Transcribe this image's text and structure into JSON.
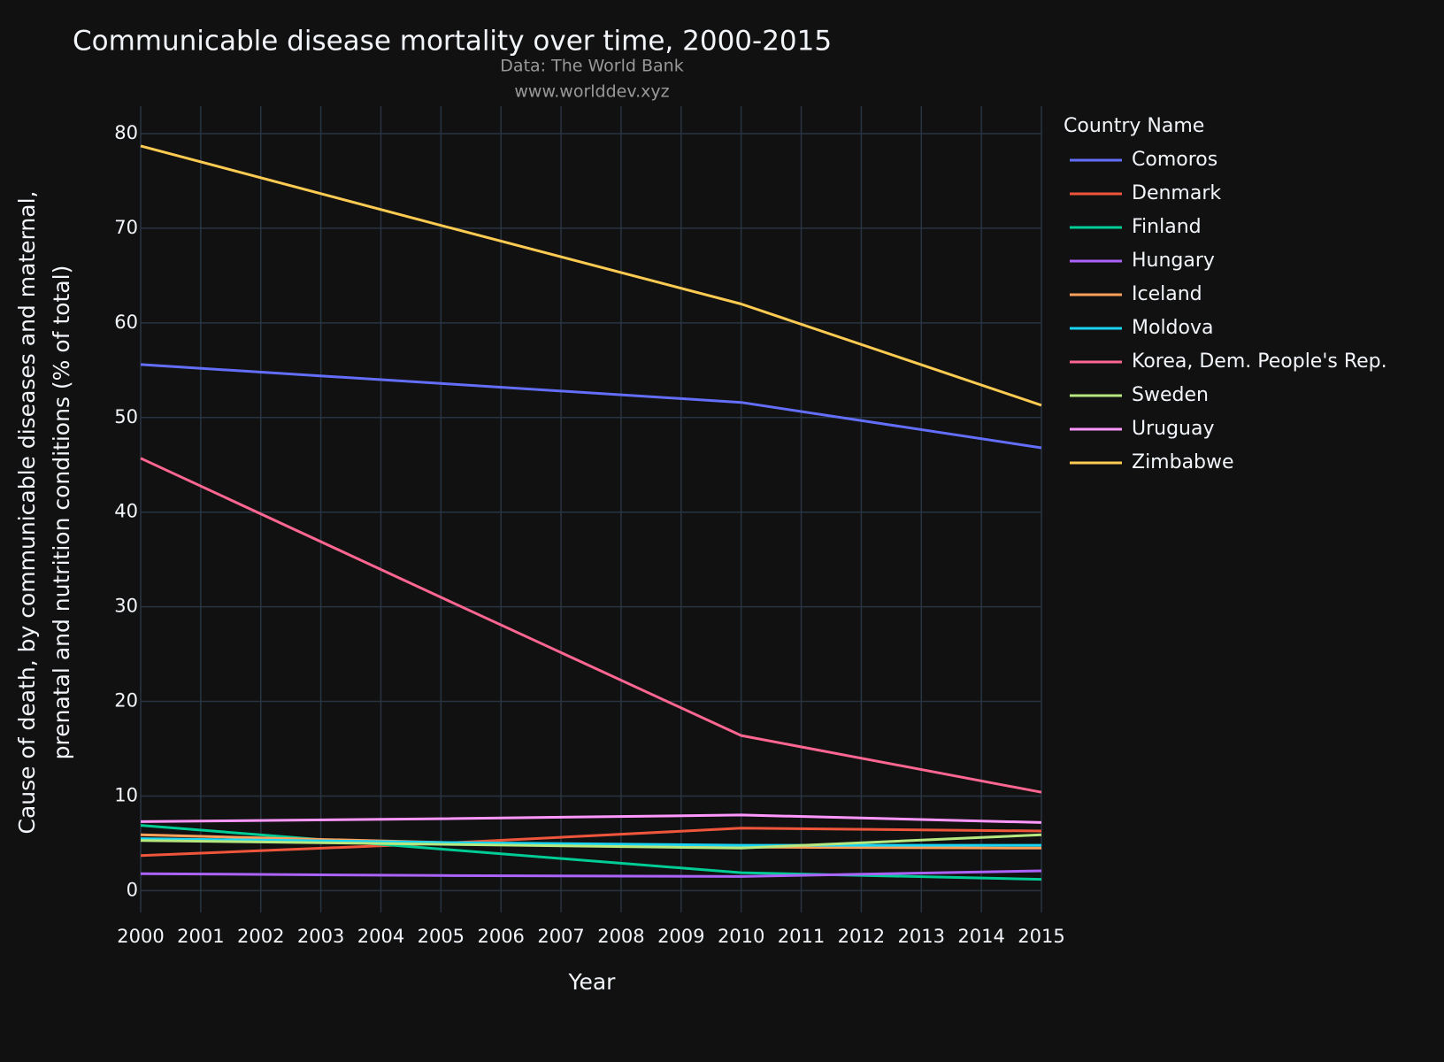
{
  "chart_data": {
    "type": "line",
    "title": "Communicable disease mortality over time, 2000-2015",
    "subtitle": [
      "Data: The World Bank",
      "www.worlddev.xyz"
    ],
    "x_label": "Year",
    "y_label": [
      "Cause of death, by communicable diseases and maternal,",
      "prenatal and nutrition conditions (% of total)"
    ],
    "legend_title": "Country Name",
    "legend_position": "right",
    "grid": true,
    "x": [
      2000,
      2005,
      2010,
      2015
    ],
    "xlim": [
      2000,
      2015
    ],
    "xticks": [
      2000,
      2001,
      2002,
      2003,
      2004,
      2005,
      2006,
      2007,
      2008,
      2009,
      2010,
      2011,
      2012,
      2013,
      2014,
      2015
    ],
    "ylim": [
      -2.3,
      82.9
    ],
    "yticks": [
      0,
      10,
      20,
      30,
      40,
      50,
      60,
      70,
      80
    ],
    "series": [
      {
        "name": "Comoros",
        "color": "#636efa",
        "values": [
          55.6,
          53.6,
          51.6,
          46.8
        ]
      },
      {
        "name": "Denmark",
        "color": "#EF553B",
        "values": [
          3.7,
          5.0,
          6.6,
          6.3
        ]
      },
      {
        "name": "Finland",
        "color": "#00cc96",
        "values": [
          6.9,
          4.4,
          1.9,
          1.2
        ]
      },
      {
        "name": "Hungary",
        "color": "#ab63fa",
        "values": [
          1.8,
          1.6,
          1.5,
          2.1
        ]
      },
      {
        "name": "Iceland",
        "color": "#FFA15A",
        "values": [
          5.9,
          5.1,
          4.6,
          4.5
        ]
      },
      {
        "name": "Moldova",
        "color": "#19d3f3",
        "values": [
          5.5,
          5.1,
          4.8,
          4.8
        ]
      },
      {
        "name": "Korea, Dem. People's Rep.",
        "color": "#FF6692",
        "values": [
          45.7,
          31.0,
          16.4,
          10.4
        ]
      },
      {
        "name": "Sweden",
        "color": "#B6E880",
        "values": [
          5.3,
          4.9,
          4.5,
          5.9
        ]
      },
      {
        "name": "Uruguay",
        "color": "#FF97FF",
        "values": [
          7.3,
          7.6,
          8.0,
          7.2
        ]
      },
      {
        "name": "Zimbabwe",
        "color": "#FECB52",
        "values": [
          78.7,
          70.3,
          62.0,
          51.3
        ]
      }
    ]
  }
}
